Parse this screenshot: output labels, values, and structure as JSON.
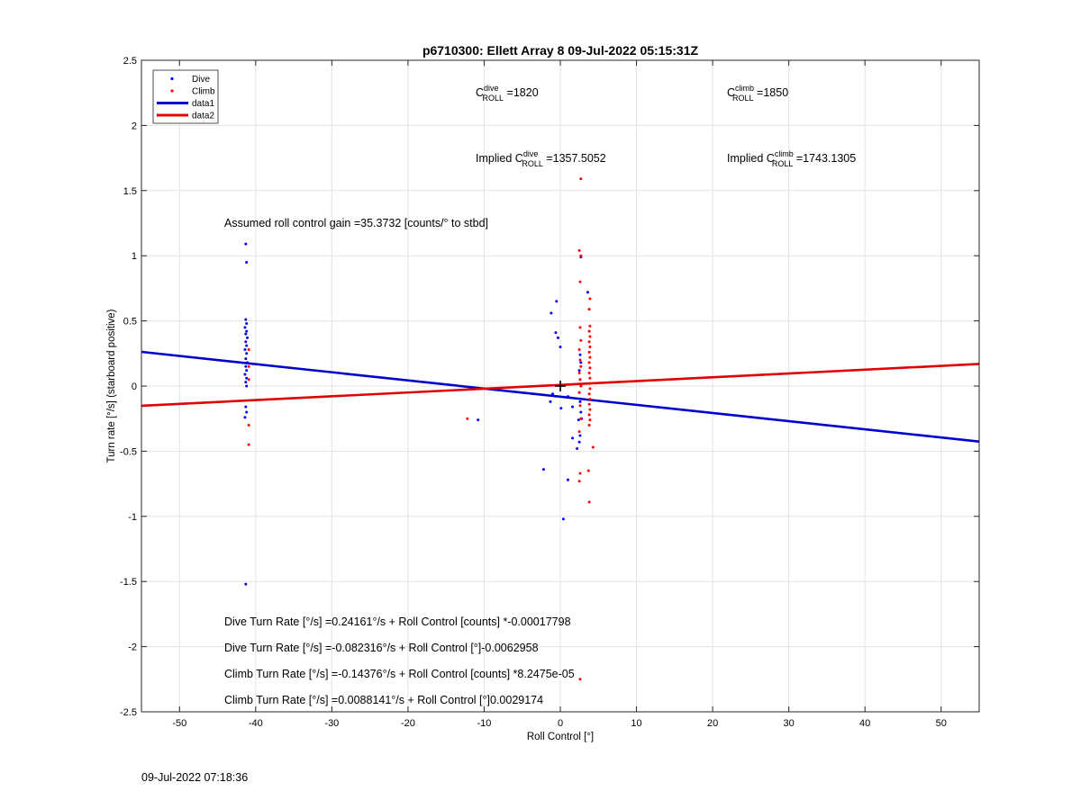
{
  "footer_timestamp": "09-Jul-2022 07:18:36",
  "chart_data": {
    "type": "scatter",
    "title": "p6710300: Ellett Array 8 09-Jul-2022 05:15:31Z",
    "xlabel": "Roll Control [°]",
    "ylabel": "Turn rate [°/s] (starboard positive)",
    "xlim": [
      -55,
      55
    ],
    "ylim": [
      -2.5,
      2.5
    ],
    "xticks": [
      -50,
      -40,
      -30,
      -20,
      -10,
      0,
      10,
      20,
      30,
      40,
      50
    ],
    "yticks": [
      -2.5,
      -2,
      -1.5,
      -1,
      -0.5,
      0,
      0.5,
      1,
      1.5,
      2,
      2.5
    ],
    "grid": true,
    "legend_position": "top-left",
    "legend": [
      {
        "label": "Dive",
        "kind": "marker",
        "color": "#0000ff"
      },
      {
        "label": "Climb",
        "kind": "marker",
        "color": "#ff0000"
      },
      {
        "label": "data1",
        "kind": "line",
        "color": "#0000cc"
      },
      {
        "label": "data2",
        "kind": "line",
        "color": "#dd0000"
      }
    ],
    "series": [
      {
        "name": "Dive",
        "color": "#0000ff",
        "points": [
          [
            -41.3,
            1.09
          ],
          [
            -41.2,
            0.95
          ],
          [
            -41.3,
            0.51
          ],
          [
            -41.2,
            0.48
          ],
          [
            -41.4,
            0.45
          ],
          [
            -41.2,
            0.42
          ],
          [
            -41.3,
            0.4
          ],
          [
            -41.1,
            0.37
          ],
          [
            -41.3,
            0.34
          ],
          [
            -41.2,
            0.31
          ],
          [
            -41.4,
            0.28
          ],
          [
            -41.2,
            0.25
          ],
          [
            -41.3,
            0.21
          ],
          [
            -41.1,
            0.18
          ],
          [
            -41.3,
            0.15
          ],
          [
            -41.2,
            0.12
          ],
          [
            -41.4,
            0.09
          ],
          [
            -41.2,
            0.06
          ],
          [
            -41.3,
            0.03
          ],
          [
            -41.2,
            0.0
          ],
          [
            -41.3,
            -0.16
          ],
          [
            -41.2,
            -0.2
          ],
          [
            -41.4,
            -0.24
          ],
          [
            -41.3,
            -1.52
          ],
          [
            -10.8,
            -0.26
          ],
          [
            -1.2,
            0.56
          ],
          [
            -0.6,
            0.41
          ],
          [
            -0.3,
            0.37
          ],
          [
            0.0,
            0.3
          ],
          [
            -0.5,
            0.65
          ],
          [
            -1.0,
            -0.06
          ],
          [
            -1.3,
            -0.12
          ],
          [
            0.1,
            -0.17
          ],
          [
            0.4,
            -1.02
          ],
          [
            1.0,
            -0.72
          ],
          [
            -2.2,
            -0.64
          ],
          [
            1.6,
            -0.4
          ],
          [
            1.0,
            -0.08
          ],
          [
            1.6,
            -0.16
          ],
          [
            2.2,
            -0.48
          ],
          [
            2.5,
            -0.43
          ],
          [
            2.6,
            -0.38
          ],
          [
            2.7,
            0.99
          ],
          [
            3.6,
            0.72
          ],
          [
            2.6,
            0.24
          ],
          [
            2.7,
            0.18
          ],
          [
            2.5,
            0.12
          ],
          [
            2.6,
            0.05
          ],
          [
            2.7,
            0.0
          ],
          [
            2.5,
            -0.05
          ],
          [
            2.6,
            -0.12
          ],
          [
            2.7,
            -0.2
          ],
          [
            2.8,
            -0.25
          ],
          [
            2.4,
            -0.26
          ]
        ]
      },
      {
        "name": "Climb",
        "color": "#ff0000",
        "points": [
          [
            -40.9,
            -0.3
          ],
          [
            -40.9,
            -0.45
          ],
          [
            -40.9,
            0.05
          ],
          [
            -40.9,
            0.15
          ],
          [
            -40.9,
            0.28
          ],
          [
            -12.2,
            -0.25
          ],
          [
            2.7,
            1.59
          ],
          [
            2.5,
            1.04
          ],
          [
            2.7,
            1.0
          ],
          [
            2.6,
            0.8
          ],
          [
            2.6,
            0.45
          ],
          [
            2.7,
            0.35
          ],
          [
            2.5,
            0.28
          ],
          [
            2.6,
            0.2
          ],
          [
            2.7,
            0.15
          ],
          [
            2.5,
            0.1
          ],
          [
            2.6,
            0.05
          ],
          [
            2.7,
            0.0
          ],
          [
            2.5,
            -0.05
          ],
          [
            2.6,
            -0.15
          ],
          [
            2.7,
            -0.25
          ],
          [
            2.5,
            -0.35
          ],
          [
            2.6,
            -0.67
          ],
          [
            2.5,
            -0.73
          ],
          [
            3.9,
            0.67
          ],
          [
            3.8,
            0.59
          ],
          [
            3.9,
            0.46
          ],
          [
            3.8,
            0.42
          ],
          [
            3.9,
            0.38
          ],
          [
            3.8,
            0.34
          ],
          [
            3.9,
            0.3
          ],
          [
            3.8,
            0.26
          ],
          [
            3.9,
            0.22
          ],
          [
            3.8,
            0.18
          ],
          [
            3.9,
            0.14
          ],
          [
            3.8,
            0.1
          ],
          [
            3.9,
            0.06
          ],
          [
            3.8,
            0.02
          ],
          [
            3.9,
            -0.02
          ],
          [
            3.8,
            -0.06
          ],
          [
            3.9,
            -0.1
          ],
          [
            3.8,
            -0.14
          ],
          [
            3.9,
            -0.18
          ],
          [
            3.8,
            -0.22
          ],
          [
            3.9,
            -0.26
          ],
          [
            3.8,
            -0.3
          ],
          [
            3.7,
            -0.65
          ],
          [
            3.8,
            -0.89
          ],
          [
            4.3,
            -0.47
          ],
          [
            2.6,
            -2.25
          ]
        ]
      }
    ],
    "lines": [
      {
        "name": "data1",
        "color": "#0000cc",
        "x": [
          -55,
          55
        ],
        "y": [
          0.2624,
          -0.4262
        ]
      },
      {
        "name": "data2",
        "color": "#dd0000",
        "x": [
          -55,
          55
        ],
        "y": [
          -0.1516,
          0.1693
        ]
      }
    ],
    "center_marker": {
      "x": 0,
      "y": 0,
      "symbol": "+"
    },
    "annotations": {
      "c_dive": {
        "base": "C",
        "sup": "dive",
        "sub": "ROLL",
        "suffix": " =1820"
      },
      "c_climb": {
        "base": "C",
        "sup": "climb",
        "sub": "ROLL",
        "suffix": " =1850"
      },
      "implied_dive": {
        "prefix": "Implied ",
        "base": "C",
        "sup": "dive",
        "sub": "ROLL",
        "suffix": " =1357.5052"
      },
      "implied_climb": {
        "prefix": "Implied ",
        "base": "C",
        "sup": "climb",
        "sub": "ROLL",
        "suffix": " =1743.1305"
      },
      "gain": "Assumed roll control gain =35.3732 [counts/° to stbd]",
      "eq1": "Dive Turn Rate [°/s] =0.24161°/s + Roll Control [counts] *-0.00017798",
      "eq2": "Dive Turn Rate [°/s] =-0.082316°/s + Roll Control [°]-0.0062958",
      "eq3": "Climb Turn Rate [°/s] =-0.14376°/s + Roll Control [counts] *8.2475e-05",
      "eq4": "Climb Turn Rate [°/s] =0.0088141°/s + Roll Control [°]0.0029174"
    }
  }
}
